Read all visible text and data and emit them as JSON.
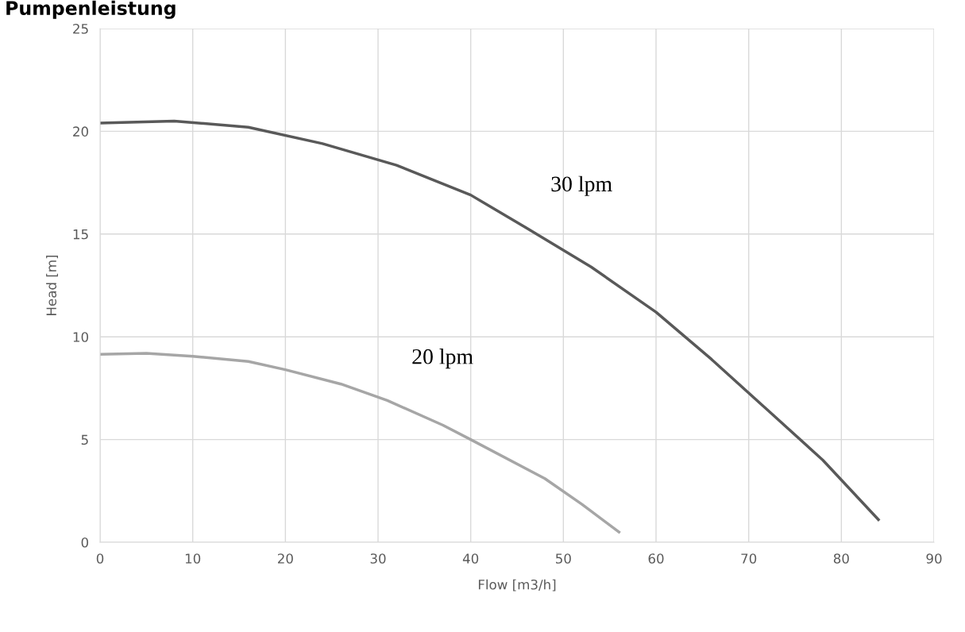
{
  "chart_data": {
    "type": "line",
    "title": "Pumpenleistung",
    "xlabel": "Flow [m3/h]",
    "ylabel": "Head [m]",
    "series": [
      {
        "name": "30 lpm",
        "color": "#595959",
        "x": [
          0,
          8,
          16,
          24,
          32,
          40,
          46,
          53,
          60,
          66,
          72,
          78,
          84
        ],
        "values": [
          20.4,
          20.5,
          20.2,
          19.4,
          18.35,
          16.9,
          15.3,
          13.4,
          11.2,
          8.9,
          6.45,
          4.0,
          1.1
        ]
      },
      {
        "name": "20 lpm",
        "color": "#a6a6a6",
        "x": [
          0,
          5,
          10,
          16,
          20,
          26,
          31,
          37,
          40,
          48,
          52,
          56
        ],
        "values": [
          9.15,
          9.2,
          9.05,
          8.8,
          8.4,
          7.7,
          6.9,
          5.7,
          5.0,
          3.1,
          1.85,
          0.5
        ]
      }
    ],
    "xlim": [
      0,
      90
    ],
    "xticks": [
      0,
      10,
      20,
      30,
      40,
      50,
      60,
      70,
      80,
      90
    ],
    "ylim": [
      0,
      25
    ],
    "yticks": [
      0,
      5,
      10,
      15,
      20,
      25
    ],
    "grid": true,
    "marker": "none",
    "line_style": "solid"
  }
}
